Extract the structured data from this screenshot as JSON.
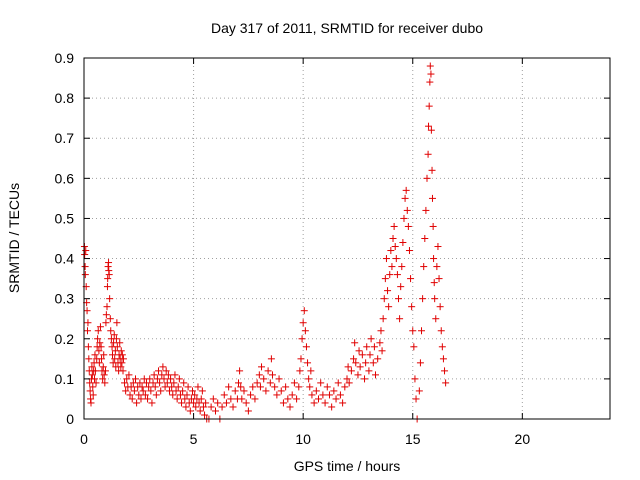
{
  "chart_data": {
    "type": "scatter",
    "title": "Day 317 of 2011, SRMTID for receiver dubo",
    "xlabel": "GPS time / hours",
    "ylabel": "SRMTID / TECUs",
    "xlim": [
      0,
      24
    ],
    "ylim": [
      0,
      0.9
    ],
    "xticks": [
      0,
      5,
      10,
      15,
      20
    ],
    "yticks": [
      0,
      0.1,
      0.2,
      0.3,
      0.4,
      0.5,
      0.6,
      0.7,
      0.8,
      0.9
    ],
    "grid": true,
    "marker": "+",
    "color": "#e00000",
    "series": [
      {
        "name": "SRMTID",
        "points": [
          [
            0.02,
            0.43
          ],
          [
            0.03,
            0.41
          ],
          [
            0.05,
            0.38
          ],
          [
            0.06,
            0.36
          ],
          [
            0.08,
            0.42
          ],
          [
            0.1,
            0.33
          ],
          [
            0.12,
            0.29
          ],
          [
            0.14,
            0.27
          ],
          [
            0.16,
            0.22
          ],
          [
            0.18,
            0.24
          ],
          [
            0.2,
            0.18
          ],
          [
            0.22,
            0.15
          ],
          [
            0.24,
            0.12
          ],
          [
            0.26,
            0.09
          ],
          [
            0.28,
            0.07
          ],
          [
            0.3,
            0.05
          ],
          [
            0.32,
            0.04
          ],
          [
            0.34,
            0.1
          ],
          [
            0.36,
            0.13
          ],
          [
            0.38,
            0.11
          ],
          [
            0.4,
            0.08
          ],
          [
            0.42,
            0.06
          ],
          [
            0.44,
            0.12
          ],
          [
            0.46,
            0.14
          ],
          [
            0.48,
            0.1
          ],
          [
            0.5,
            0.16
          ],
          [
            0.52,
            0.12
          ],
          [
            0.55,
            0.09
          ],
          [
            0.58,
            0.15
          ],
          [
            0.6,
            0.18
          ],
          [
            0.62,
            0.2
          ],
          [
            0.65,
            0.22
          ],
          [
            0.68,
            0.17
          ],
          [
            0.7,
            0.14
          ],
          [
            0.72,
            0.19
          ],
          [
            0.75,
            0.23
          ],
          [
            0.78,
            0.18
          ],
          [
            0.8,
            0.15
          ],
          [
            0.82,
            0.12
          ],
          [
            0.85,
            0.1
          ],
          [
            0.88,
            0.13
          ],
          [
            0.9,
            0.16
          ],
          [
            0.92,
            0.11
          ],
          [
            0.95,
            0.09
          ],
          [
            0.98,
            0.12
          ],
          [
            1.0,
            0.24
          ],
          [
            1.02,
            0.26
          ],
          [
            1.05,
            0.28
          ],
          [
            1.07,
            0.33
          ],
          [
            1.08,
            0.35
          ],
          [
            1.1,
            0.38
          ],
          [
            1.12,
            0.39
          ],
          [
            1.13,
            0.37
          ],
          [
            1.15,
            0.36
          ],
          [
            1.17,
            0.3
          ],
          [
            1.2,
            0.25
          ],
          [
            1.22,
            0.22
          ],
          [
            1.25,
            0.2
          ],
          [
            1.28,
            0.18
          ],
          [
            1.3,
            0.16
          ],
          [
            1.33,
            0.14
          ],
          [
            1.35,
            0.19
          ],
          [
            1.38,
            0.21
          ],
          [
            1.4,
            0.15
          ],
          [
            1.43,
            0.17
          ],
          [
            1.45,
            0.13
          ],
          [
            1.48,
            0.2
          ],
          [
            1.5,
            0.24
          ],
          [
            1.52,
            0.18
          ],
          [
            1.55,
            0.14
          ],
          [
            1.58,
            0.12
          ],
          [
            1.6,
            0.16
          ],
          [
            1.63,
            0.19
          ],
          [
            1.65,
            0.15
          ],
          [
            1.68,
            0.13
          ],
          [
            1.7,
            0.17
          ],
          [
            1.73,
            0.14
          ],
          [
            1.75,
            0.16
          ],
          [
            1.78,
            0.12
          ],
          [
            1.8,
            0.15
          ],
          [
            1.85,
            0.09
          ],
          [
            1.9,
            0.07
          ],
          [
            1.95,
            0.1
          ],
          [
            2.0,
            0.08
          ],
          [
            2.05,
            0.11
          ],
          [
            2.1,
            0.06
          ],
          [
            2.15,
            0.08
          ],
          [
            2.2,
            0.05
          ],
          [
            2.25,
            0.09
          ],
          [
            2.3,
            0.07
          ],
          [
            2.35,
            0.1
          ],
          [
            2.4,
            0.04
          ],
          [
            2.45,
            0.08
          ],
          [
            2.5,
            0.06
          ],
          [
            2.55,
            0.09
          ],
          [
            2.6,
            0.05
          ],
          [
            2.65,
            0.08
          ],
          [
            2.7,
            0.07
          ],
          [
            2.75,
            0.1
          ],
          [
            2.8,
            0.06
          ],
          [
            2.85,
            0.09
          ],
          [
            2.9,
            0.05
          ],
          [
            2.95,
            0.08
          ],
          [
            3.0,
            0.1
          ],
          [
            3.05,
            0.07
          ],
          [
            3.1,
            0.04
          ],
          [
            3.15,
            0.09
          ],
          [
            3.2,
            0.11
          ],
          [
            3.25,
            0.08
          ],
          [
            3.3,
            0.06
          ],
          [
            3.35,
            0.1
          ],
          [
            3.4,
            0.12
          ],
          [
            3.45,
            0.09
          ],
          [
            3.5,
            0.07
          ],
          [
            3.55,
            0.11
          ],
          [
            3.6,
            0.13
          ],
          [
            3.65,
            0.1
          ],
          [
            3.7,
            0.08
          ],
          [
            3.75,
            0.12
          ],
          [
            3.8,
            0.09
          ],
          [
            3.85,
            0.11
          ],
          [
            3.9,
            0.07
          ],
          [
            3.95,
            0.1
          ],
          [
            4.0,
            0.08
          ],
          [
            4.05,
            0.06
          ],
          [
            4.1,
            0.09
          ],
          [
            4.15,
            0.11
          ],
          [
            4.2,
            0.07
          ],
          [
            4.25,
            0.05
          ],
          [
            4.3,
            0.08
          ],
          [
            4.35,
            0.1
          ],
          [
            4.4,
            0.06
          ],
          [
            4.45,
            0.04
          ],
          [
            4.5,
            0.07
          ],
          [
            4.55,
            0.09
          ],
          [
            4.6,
            0.05
          ],
          [
            4.65,
            0.03
          ],
          [
            4.7,
            0.06
          ],
          [
            4.75,
            0.08
          ],
          [
            4.8,
            0.04
          ],
          [
            4.85,
            0.02
          ],
          [
            4.9,
            0.05
          ],
          [
            4.95,
            0.07
          ],
          [
            5.0,
            0.04
          ],
          [
            5.05,
            0.06
          ],
          [
            5.1,
            0.03
          ],
          [
            5.15,
            0.05
          ],
          [
            5.2,
            0.08
          ],
          [
            5.25,
            0.04
          ],
          [
            5.3,
            0.02
          ],
          [
            5.35,
            0.05
          ],
          [
            5.4,
            0.07
          ],
          [
            5.45,
            0.03
          ],
          [
            5.5,
            0.01
          ],
          [
            5.55,
            0.04
          ],
          [
            5.6,
            0.0
          ],
          [
            5.7,
            0.0
          ],
          [
            5.8,
            0.03
          ],
          [
            5.9,
            0.05
          ],
          [
            6.0,
            0.02
          ],
          [
            6.1,
            0.04
          ],
          [
            6.2,
            0.0
          ],
          [
            6.3,
            0.03
          ],
          [
            6.4,
            0.06
          ],
          [
            6.5,
            0.04
          ],
          [
            6.6,
            0.08
          ],
          [
            6.7,
            0.05
          ],
          [
            6.8,
            0.03
          ],
          [
            6.9,
            0.07
          ],
          [
            7.0,
            0.05
          ],
          [
            7.05,
            0.09
          ],
          [
            7.1,
            0.12
          ],
          [
            7.15,
            0.08
          ],
          [
            7.2,
            0.05
          ],
          [
            7.3,
            0.07
          ],
          [
            7.4,
            0.04
          ],
          [
            7.5,
            0.02
          ],
          [
            7.6,
            0.06
          ],
          [
            7.7,
            0.08
          ],
          [
            7.8,
            0.05
          ],
          [
            7.9,
            0.09
          ],
          [
            8.0,
            0.11
          ],
          [
            8.05,
            0.08
          ],
          [
            8.1,
            0.13
          ],
          [
            8.2,
            0.1
          ],
          [
            8.3,
            0.07
          ],
          [
            8.4,
            0.12
          ],
          [
            8.5,
            0.09
          ],
          [
            8.55,
            0.15
          ],
          [
            8.6,
            0.11
          ],
          [
            8.7,
            0.08
          ],
          [
            8.8,
            0.06
          ],
          [
            8.9,
            0.1
          ],
          [
            9.0,
            0.07
          ],
          [
            9.1,
            0.04
          ],
          [
            9.2,
            0.08
          ],
          [
            9.3,
            0.05
          ],
          [
            9.4,
            0.03
          ],
          [
            9.5,
            0.06
          ],
          [
            9.6,
            0.09
          ],
          [
            9.7,
            0.05
          ],
          [
            9.8,
            0.08
          ],
          [
            9.85,
            0.12
          ],
          [
            9.9,
            0.15
          ],
          [
            9.95,
            0.2
          ],
          [
            10.0,
            0.24
          ],
          [
            10.05,
            0.27
          ],
          [
            10.1,
            0.22
          ],
          [
            10.15,
            0.18
          ],
          [
            10.2,
            0.14
          ],
          [
            10.25,
            0.1
          ],
          [
            10.3,
            0.08
          ],
          [
            10.35,
            0.12
          ],
          [
            10.4,
            0.06
          ],
          [
            10.5,
            0.04
          ],
          [
            10.6,
            0.07
          ],
          [
            10.7,
            0.05
          ],
          [
            10.8,
            0.09
          ],
          [
            10.9,
            0.06
          ],
          [
            11.0,
            0.04
          ],
          [
            11.1,
            0.08
          ],
          [
            11.2,
            0.06
          ],
          [
            11.3,
            0.03
          ],
          [
            11.4,
            0.07
          ],
          [
            11.5,
            0.05
          ],
          [
            11.6,
            0.09
          ],
          [
            11.7,
            0.06
          ],
          [
            11.8,
            0.04
          ],
          [
            11.9,
            0.08
          ],
          [
            12.0,
            0.1
          ],
          [
            12.05,
            0.13
          ],
          [
            12.1,
            0.09
          ],
          [
            12.2,
            0.12
          ],
          [
            12.3,
            0.15
          ],
          [
            12.35,
            0.19
          ],
          [
            12.4,
            0.14
          ],
          [
            12.5,
            0.11
          ],
          [
            12.55,
            0.17
          ],
          [
            12.6,
            0.13
          ],
          [
            12.7,
            0.16
          ],
          [
            12.8,
            0.1
          ],
          [
            12.85,
            0.14
          ],
          [
            12.9,
            0.18
          ],
          [
            13.0,
            0.12
          ],
          [
            13.05,
            0.16
          ],
          [
            13.1,
            0.2
          ],
          [
            13.2,
            0.14
          ],
          [
            13.25,
            0.18
          ],
          [
            13.3,
            0.11
          ],
          [
            13.4,
            0.15
          ],
          [
            13.5,
            0.19
          ],
          [
            13.55,
            0.22
          ],
          [
            13.6,
            0.17
          ],
          [
            13.65,
            0.25
          ],
          [
            13.7,
            0.3
          ],
          [
            13.75,
            0.35
          ],
          [
            13.8,
            0.4
          ],
          [
            13.85,
            0.32
          ],
          [
            13.9,
            0.28
          ],
          [
            13.95,
            0.36
          ],
          [
            14.0,
            0.42
          ],
          [
            14.05,
            0.38
          ],
          [
            14.1,
            0.45
          ],
          [
            14.15,
            0.48
          ],
          [
            14.2,
            0.43
          ],
          [
            14.25,
            0.4
          ],
          [
            14.3,
            0.36
          ],
          [
            14.35,
            0.3
          ],
          [
            14.4,
            0.25
          ],
          [
            14.45,
            0.33
          ],
          [
            14.5,
            0.38
          ],
          [
            14.55,
            0.44
          ],
          [
            14.6,
            0.5
          ],
          [
            14.65,
            0.55
          ],
          [
            14.7,
            0.57
          ],
          [
            14.75,
            0.52
          ],
          [
            14.8,
            0.48
          ],
          [
            14.85,
            0.42
          ],
          [
            14.9,
            0.35
          ],
          [
            14.95,
            0.28
          ],
          [
            15.0,
            0.22
          ],
          [
            15.05,
            0.18
          ],
          [
            15.1,
            0.1
          ],
          [
            15.15,
            0.05
          ],
          [
            15.2,
            0.0
          ],
          [
            15.3,
            0.07
          ],
          [
            15.35,
            0.14
          ],
          [
            15.4,
            0.22
          ],
          [
            15.45,
            0.3
          ],
          [
            15.5,
            0.38
          ],
          [
            15.55,
            0.45
          ],
          [
            15.6,
            0.52
          ],
          [
            15.65,
            0.6
          ],
          [
            15.7,
            0.66
          ],
          [
            15.72,
            0.73
          ],
          [
            15.75,
            0.78
          ],
          [
            15.78,
            0.84
          ],
          [
            15.8,
            0.88
          ],
          [
            15.83,
            0.86
          ],
          [
            15.85,
            0.72
          ],
          [
            15.88,
            0.62
          ],
          [
            15.9,
            0.55
          ],
          [
            15.93,
            0.48
          ],
          [
            15.95,
            0.4
          ],
          [
            15.98,
            0.34
          ],
          [
            16.0,
            0.3
          ],
          [
            16.05,
            0.25
          ],
          [
            16.1,
            0.38
          ],
          [
            16.15,
            0.43
          ],
          [
            16.2,
            0.35
          ],
          [
            16.25,
            0.28
          ],
          [
            16.3,
            0.22
          ],
          [
            16.35,
            0.18
          ],
          [
            16.4,
            0.15
          ],
          [
            16.45,
            0.12
          ],
          [
            16.5,
            0.09
          ]
        ]
      }
    ]
  }
}
